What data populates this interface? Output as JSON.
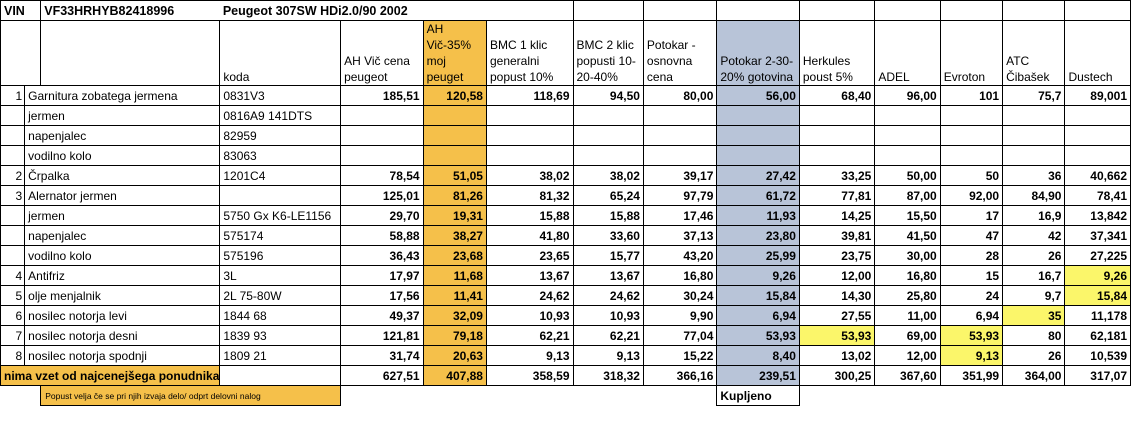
{
  "top": {
    "vin_label": "VIN",
    "vin": "VF33HRHYB82418996",
    "car": "Peugeot 307SW HDi2.0/90 2002"
  },
  "headers": {
    "code": "koda",
    "cols": [
      "AH Vič cena peugeot",
      "AH Vič-35% moj peuget",
      "BMC 1 klic generalni popust 10%",
      "BMC 2 klic popusti 10-20-40%",
      "Potokar - osnovna cena",
      "Potokar 2-30-20% gotovina",
      "Herkules poust 5%",
      "ADEL",
      "Evroton",
      "ATC Čibašek",
      "Dustech"
    ]
  },
  "rows": [
    {
      "idx": "1",
      "name": "Garnitura zobatega jermena",
      "code": "0831V3",
      "values": [
        "185,51",
        "120,58",
        "118,69",
        "94,50",
        "80,00",
        "56,00",
        "68,40",
        "96,00",
        "101",
        "75,7",
        "89,001"
      ]
    },
    {
      "idx": "",
      "name": "jermen",
      "code": "0816A9 141DTS",
      "values": [
        "",
        "",
        "",
        "",
        "",
        "",
        "",
        "",
        "",
        "",
        ""
      ]
    },
    {
      "idx": "",
      "name": "napenjalec",
      "code": "82959",
      "values": [
        "",
        "",
        "",
        "",
        "",
        "",
        "",
        "",
        "",
        "",
        ""
      ]
    },
    {
      "idx": "",
      "name": "vodilno kolo",
      "code": "83063",
      "values": [
        "",
        "",
        "",
        "",
        "",
        "",
        "",
        "",
        "",
        "",
        ""
      ]
    },
    {
      "idx": "2",
      "name": "Črpalka",
      "code": "1201C4",
      "values": [
        "78,54",
        "51,05",
        "38,02",
        "38,02",
        "39,17",
        "27,42",
        "33,25",
        "50,00",
        "50",
        "36",
        "40,662"
      ]
    },
    {
      "idx": "3",
      "name": "Alernator jermen",
      "code": "",
      "values": [
        "125,01",
        "81,26",
        "81,32",
        "65,24",
        "97,79",
        "61,72",
        "77,81",
        "87,00",
        "92,00",
        "84,90",
        "78,41"
      ]
    },
    {
      "idx": "",
      "name": "jermen",
      "code": "5750 Gx K6-LE1156",
      "values": [
        "29,70",
        "19,31",
        "15,88",
        "15,88",
        "17,46",
        "11,93",
        "14,25",
        "15,50",
        "17",
        "16,9",
        "13,842"
      ]
    },
    {
      "idx": "",
      "name": "napenjalec",
      "code": "575174",
      "values": [
        "58,88",
        "38,27",
        "41,80",
        "33,60",
        "37,13",
        "23,80",
        "39,81",
        "41,50",
        "47",
        "42",
        "37,341"
      ]
    },
    {
      "idx": "",
      "name": "vodilno kolo",
      "code": "575196",
      "values": [
        "36,43",
        "23,68",
        "23,65",
        "15,77",
        "43,20",
        "25,99",
        "23,75",
        "30,00",
        "28",
        "26",
        "27,225"
      ]
    },
    {
      "idx": "4",
      "name": "Antifriz",
      "code": "3L",
      "values": [
        "17,97",
        "11,68",
        "13,67",
        "13,67",
        "16,80",
        "9,26",
        "12,00",
        "16,80",
        "15",
        "16,7",
        "9,26"
      ]
    },
    {
      "idx": "5",
      "name": "olje menjalnik",
      "code": "2L 75-80W",
      "values": [
        "17,56",
        "11,41",
        "24,62",
        "24,62",
        "30,24",
        "15,84",
        "14,30",
        "25,80",
        "24",
        "9,7",
        "15,84"
      ]
    },
    {
      "idx": "6",
      "name": "nosilec notorja levi",
      "code": "1844 68",
      "values": [
        "49,37",
        "32,09",
        "10,93",
        "10,93",
        "9,90",
        "6,94",
        "27,55",
        "11,00",
        "6,94",
        "35",
        "11,178"
      ]
    },
    {
      "idx": "7",
      "name": "nosilec notorja desni",
      "code": "1839 93",
      "values": [
        "121,81",
        "79,18",
        "62,21",
        "62,21",
        "77,04",
        "53,93",
        "53,93",
        "69,00",
        "53,93",
        "80",
        "62,181"
      ]
    },
    {
      "idx": "8",
      "name": "nosilec notorja spodnji",
      "code": "1809 21",
      "values": [
        "31,74",
        "20,63",
        "9,13",
        "9,13",
        "15,22",
        "8,40",
        "13,02",
        "12,00",
        "9,13",
        "26",
        "10,539"
      ]
    }
  ],
  "totals": {
    "label": "nima vzet od najcenejšega ponudnika kompleta",
    "values": [
      "627,51",
      "407,88",
      "358,59",
      "318,32",
      "366,16",
      "239,51",
      "300,25",
      "367,60",
      "351,99",
      "364,00",
      "317,07"
    ]
  },
  "note": "Popust velja če se pri njih izvaja delo/ odprt delovni nalog",
  "purchased": "Kupljeno",
  "colors": {
    "orange": "#f5c04a",
    "blue": "#b8c4d8",
    "yellow": "#fbf66a"
  },
  "highlights": [
    [
      9,
      10
    ],
    [
      10,
      10
    ],
    [
      11,
      9
    ],
    [
      12,
      6
    ],
    [
      12,
      8
    ],
    [
      13,
      8
    ]
  ]
}
